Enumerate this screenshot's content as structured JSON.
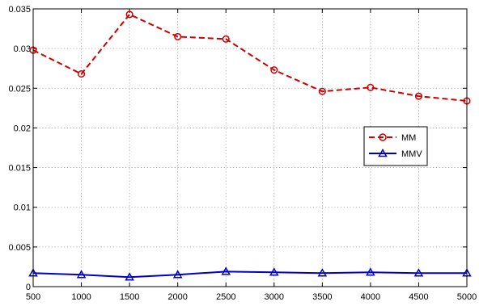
{
  "chart_data": {
    "type": "line",
    "x": [
      500,
      1000,
      1500,
      2000,
      2500,
      3000,
      3500,
      4000,
      4500,
      5000
    ],
    "xlim": [
      500,
      5000
    ],
    "ylim": [
      0,
      0.035
    ],
    "xticks": [
      "500",
      "1000",
      "1500",
      "2000",
      "2500",
      "3000",
      "3500",
      "4000",
      "4500",
      "5000"
    ],
    "yticks": [
      "0",
      "0.005",
      "0.01",
      "0.015",
      "0.02",
      "0.025",
      "0.03",
      "0.035"
    ],
    "grid": true,
    "legend_position": "right",
    "series": [
      {
        "name": "MM",
        "color": "#cc0000",
        "line_style": "dashed",
        "marker": "circle",
        "values": [
          0.0298,
          0.0268,
          0.0343,
          0.0315,
          0.0312,
          0.0273,
          0.0246,
          0.0251,
          0.024,
          0.0234
        ]
      },
      {
        "name": "MMV",
        "color": "#0000cc",
        "line_style": "solid",
        "marker": "triangle",
        "values": [
          0.0017,
          0.0015,
          0.0012,
          0.0015,
          0.0019,
          0.0018,
          0.0017,
          0.0018,
          0.0017,
          0.0017
        ]
      }
    ]
  }
}
